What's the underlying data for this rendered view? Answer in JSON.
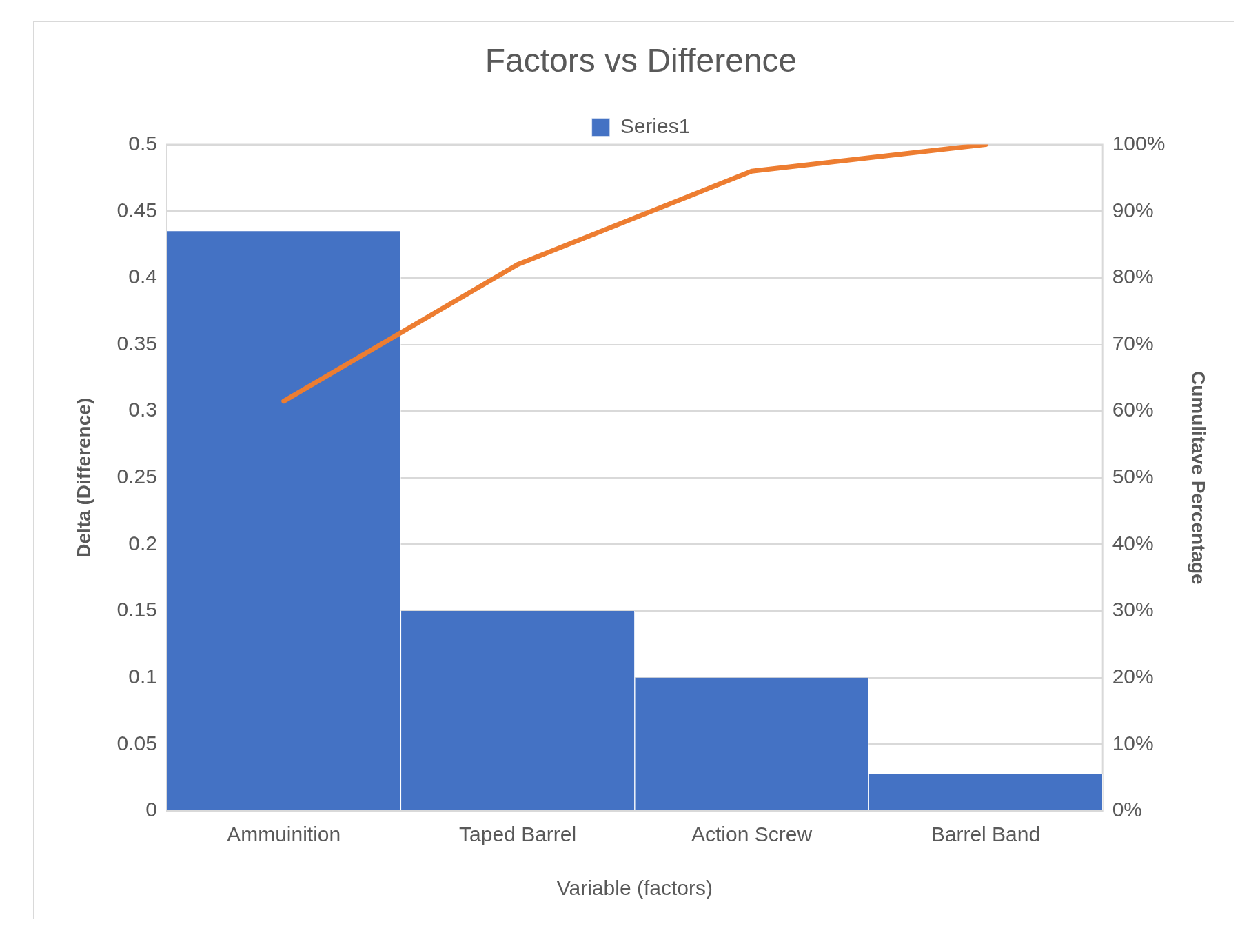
{
  "chart_data": {
    "type": "bar",
    "title": "Factors vs Difference",
    "xlabel": "Variable (factors)",
    "ylabel": "Delta (Difference)",
    "y2label": "Cumulitave Percentage",
    "categories": [
      "Ammuinition",
      "Taped Barrel",
      "Action Screw",
      "Barrel Band"
    ],
    "series": [
      {
        "name": "Series1",
        "color": "#4472c4",
        "values": [
          0.435,
          0.15,
          0.1,
          0.028
        ]
      },
      {
        "type": "line",
        "axis": "y2",
        "color": "#ed7d31",
        "values": [
          61.5,
          82,
          96,
          100
        ]
      }
    ],
    "ylim": [
      0,
      0.5
    ],
    "yticks": [
      0,
      0.05,
      0.1,
      0.15,
      0.2,
      0.25,
      0.3,
      0.35,
      0.4,
      0.45,
      0.5
    ],
    "y2lim": [
      0,
      100
    ],
    "y2ticks": [
      {
        "value": 0,
        "label": "0%"
      },
      {
        "value": 10,
        "label": "10%"
      },
      {
        "value": 20,
        "label": "20%"
      },
      {
        "value": 30,
        "label": "30%"
      },
      {
        "value": 40,
        "label": "40%"
      },
      {
        "value": 50,
        "label": "50%"
      },
      {
        "value": 60,
        "label": "60%"
      },
      {
        "value": 70,
        "label": "70%"
      },
      {
        "value": 80,
        "label": "80%"
      },
      {
        "value": 90,
        "label": "90%"
      },
      {
        "value": 100,
        "label": "100%"
      }
    ],
    "grid": "y",
    "legend": "top",
    "marker": "none",
    "line_style": "solid"
  }
}
